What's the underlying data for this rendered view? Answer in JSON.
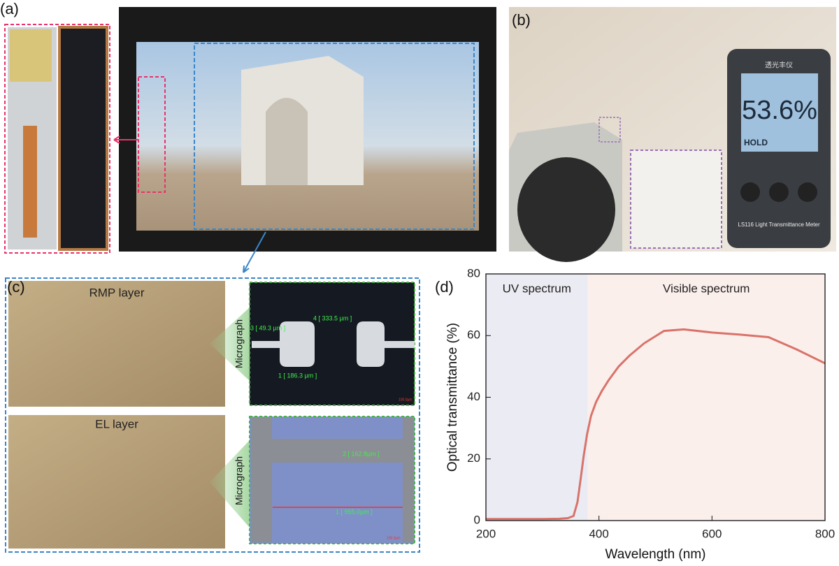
{
  "panels": {
    "a": {
      "label": "(a)"
    },
    "b": {
      "label": "(b)",
      "meter_brand": "透光丰仪",
      "reading": "53.6%",
      "hold": "HOLD",
      "meter_model": "LS116 Light Transmittance Meter"
    },
    "c": {
      "label": "(c)",
      "layers": [
        {
          "name": "RMP layer",
          "micrograph": "Micrograph",
          "measurements": [
            "3 [ 49.3 µm ]",
            "4 [ 333.5 µm ]",
            "1 [ 186.3 µm ]"
          ],
          "scale_bar": "100.0µm"
        },
        {
          "name": "EL layer",
          "micrograph": "Micrograph",
          "measurements": [
            "2 [ 162.8µm ]",
            "1 [ 955.0µm ]"
          ],
          "scale_bar": "100.0µm"
        }
      ]
    },
    "d": {
      "label": "(d)"
    }
  },
  "chart_data": {
    "type": "line",
    "xlabel": "Wavelength (nm)",
    "ylabel": "Optical transmittance (%)",
    "x": [
      200,
      250,
      300,
      330,
      345,
      355,
      362,
      368,
      373,
      379,
      386,
      395,
      405,
      417,
      435,
      454,
      480,
      515,
      550,
      600,
      650,
      700,
      750,
      800
    ],
    "values": [
      0.5,
      0.5,
      0.5,
      0.6,
      0.8,
      1.5,
      6,
      14,
      21,
      28,
      34,
      38.5,
      42,
      45.5,
      50,
      53.5,
      57.5,
      61.5,
      62,
      61,
      60.3,
      59.5,
      55.5,
      51
    ],
    "color": "#d9736a",
    "xlim": [
      200,
      800
    ],
    "ylim": [
      0,
      80
    ],
    "xticks": [
      200,
      400,
      600,
      800
    ],
    "yticks": [
      0,
      20,
      40,
      60,
      80
    ],
    "regions": [
      {
        "label": "UV spectrum",
        "range": [
          200,
          380
        ],
        "color": "#ebebf3"
      },
      {
        "label": "Visible spectrum",
        "range": [
          380,
          800
        ],
        "color": "#fbefec"
      }
    ]
  }
}
